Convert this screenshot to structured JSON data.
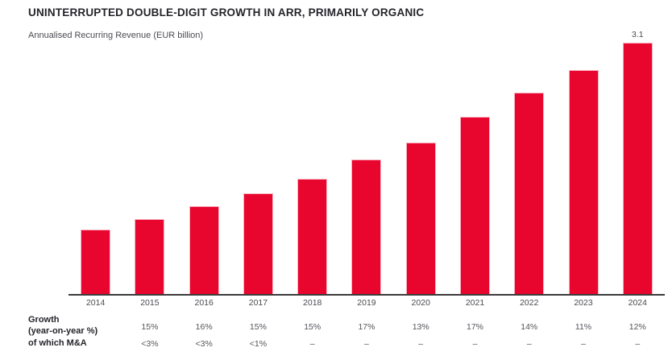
{
  "page": {
    "title": "UNINTERRUPTED DOUBLE-DIGIT GROWTH IN ARR, PRIMARILY ORGANIC",
    "subtitle": "Annualised Recurring Revenue (EUR billion)"
  },
  "colors": {
    "bar": "#e9062e",
    "bar_edge": "#f7b2c0",
    "title_text": "#26242a",
    "muted_text": "#4b4b53",
    "value_text": "#55555d",
    "axis": "#3b3b3b"
  },
  "chart_data": {
    "type": "bar",
    "title": "UNINTERRUPTED DOUBLE-DIGIT GROWTH IN ARR, PRIMARILY ORGANIC",
    "subtitle": "Annualised Recurring Revenue (EUR billion)",
    "unit": "EUR billion",
    "xlabel": "",
    "ylabel": "Annualised Recurring Revenue (EUR billion)",
    "ylim": [
      0,
      3.3
    ],
    "grid": false,
    "legend": false,
    "bar_color": "#e9062e",
    "categories": [
      "2014",
      "2015",
      "2016",
      "2017",
      "2018",
      "2019",
      "2020",
      "2021",
      "2022",
      "2023",
      "2024"
    ],
    "values": [
      0.8,
      0.92,
      1.08,
      1.24,
      1.42,
      1.66,
      1.87,
      2.19,
      2.49,
      2.76,
      3.1
    ],
    "data_labels": [
      "",
      "",
      "",
      "",
      "",
      "",
      "",
      "",
      "",
      "",
      "3.1"
    ],
    "annotation_note": "only the 2024 bar carries the printed value 3.1; other values estimated from bar heights"
  },
  "table": {
    "rows": [
      {
        "label_line1": "Growth",
        "label_line2": "(year-on-year %)",
        "values": [
          "",
          "15%",
          "16%",
          "15%",
          "15%",
          "17%",
          "13%",
          "17%",
          "14%",
          "11%",
          "12%"
        ]
      },
      {
        "label_line1": "of which M&A",
        "label_line2": "",
        "values": [
          "",
          "<3%",
          "<3%",
          "<1%",
          "–",
          "–",
          "–",
          "–",
          "–",
          "–",
          "–"
        ]
      }
    ]
  }
}
